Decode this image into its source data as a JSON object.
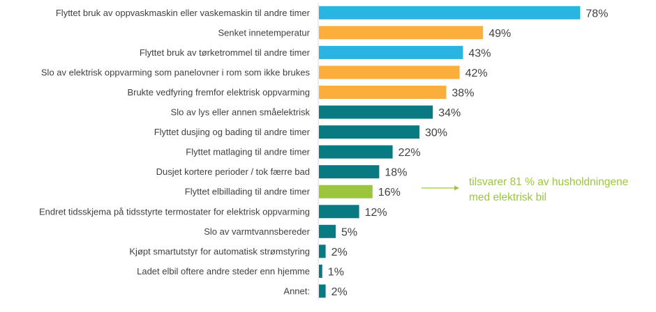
{
  "chart_data": {
    "type": "bar",
    "orientation": "horizontal",
    "categories": [
      "Flyttet bruk av oppvaskmaskin eller vaskemaskin til andre timer",
      "Senket innetemperatur",
      "Flyttet bruk av tørketrommel til andre timer",
      "Slo av elektrisk oppvarming som panelovner i rom som ikke brukes",
      "Brukte vedfyring fremfor elektrisk oppvarming",
      "Slo av lys eller annen småelektrisk",
      "Flyttet dusjing og bading til andre timer",
      "Flyttet matlaging til andre timer",
      "Dusjet kortere perioder / tok færre bad",
      "Flyttet elbillading til andre timer",
      "Endret tidsskjema på tidsstyrte termostater for elektrisk oppvarming",
      "Slo av varmtvannsbereder",
      "Kjøpt smartutstyr for automatisk strømstyring",
      "Ladet elbil oftere andre steder enn hjemme",
      "Annet:"
    ],
    "values": [
      78,
      49,
      43,
      42,
      38,
      34,
      30,
      22,
      18,
      16,
      12,
      5,
      2,
      1,
      2
    ],
    "value_labels": [
      "78%",
      "49%",
      "43%",
      "42%",
      "38%",
      "34%",
      "30%",
      "22%",
      "18%",
      "16%",
      "12%",
      "5%",
      "2%",
      "1%",
      "2%"
    ],
    "bar_colors": [
      "#2ab4e2",
      "#fbae3c",
      "#2ab4e2",
      "#fbae3c",
      "#fbae3c",
      "#097a82",
      "#097a82",
      "#097a82",
      "#097a82",
      "#9bc63b",
      "#097a82",
      "#097a82",
      "#097a82",
      "#097a82",
      "#097a82"
    ],
    "xlim": [
      0,
      80
    ],
    "grid": false,
    "legend": "none",
    "annotation": {
      "text_lines": [
        "tilsvarer 81 % av husholdningene",
        "med elektrisk bil"
      ],
      "color": "#9bc63b",
      "points_to_category": "Flyttet elbillading til andre timer"
    }
  }
}
